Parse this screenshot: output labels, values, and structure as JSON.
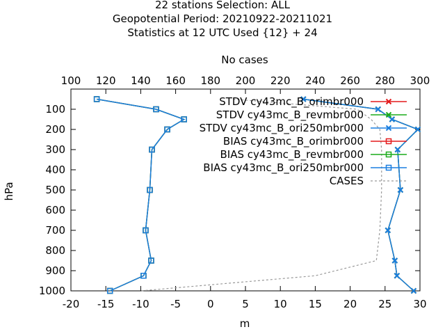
{
  "chart_data": {
    "type": "line",
    "title_lines": [
      "22 stations Selection: ALL",
      "Geopotential  Period: 20210922-20211021",
      "Statistics at 12 UTC  Used {12} + 24"
    ],
    "xlabel": "m",
    "ylabel": "hPa",
    "x2label": "No cases",
    "xlim": [
      -20,
      30
    ],
    "x2lim": [
      100,
      300
    ],
    "ylim": [
      1000,
      0
    ],
    "x_ticks": [
      "-20",
      "-15",
      "-10",
      "-5",
      "0",
      "5",
      "10",
      "15",
      "20",
      "25",
      "30"
    ],
    "x2_ticks": [
      "100",
      "120",
      "140",
      "160",
      "180",
      "200",
      "220",
      "240",
      "260",
      "280",
      "300"
    ],
    "y_ticks": [
      "100",
      "200",
      "300",
      "400",
      "500",
      "600",
      "700",
      "800",
      "900",
      "1000"
    ],
    "legend_position": "top-right",
    "grid": false,
    "levels": [
      50,
      100,
      150,
      200,
      300,
      500,
      700,
      850,
      925,
      1000
    ],
    "series": [
      {
        "name": "STDV cy43mc_B_orimbr000",
        "kind": "stdv",
        "color": "#e41a1c",
        "marker": "x",
        "values": [
          13.3,
          24.0,
          26.0,
          29.7,
          26.8,
          27.2,
          25.4,
          26.4,
          26.7,
          29.1
        ]
      },
      {
        "name": "STDV cy43mc_B_revmbr000",
        "kind": "stdv",
        "color": "#1aab1a",
        "marker": "x",
        "values": [
          13.3,
          24.0,
          26.0,
          29.7,
          26.8,
          27.2,
          25.4,
          26.4,
          26.7,
          29.1
        ]
      },
      {
        "name": "STDV cy43mc_B_ori250mbr000",
        "kind": "stdv",
        "color": "#1a7ee0",
        "marker": "x",
        "values": [
          13.3,
          24.0,
          26.0,
          29.7,
          26.8,
          27.2,
          25.4,
          26.4,
          26.7,
          29.1
        ]
      },
      {
        "name": "BIAS cy43mc_B_orimbr000",
        "kind": "bias",
        "color": "#e41a1c",
        "marker": "square",
        "values": [
          -16.3,
          -7.8,
          -3.8,
          -6.2,
          -8.4,
          -8.7,
          -9.3,
          -8.5,
          -9.6,
          -14.4
        ]
      },
      {
        "name": "BIAS cy43mc_B_revmbr000",
        "kind": "bias",
        "color": "#1aab1a",
        "marker": "square",
        "values": [
          -16.3,
          -7.8,
          -3.8,
          -6.2,
          -8.4,
          -8.7,
          -9.3,
          -8.5,
          -9.6,
          -14.4
        ]
      },
      {
        "name": "BIAS cy43mc_B_ori250mbr000",
        "kind": "bias",
        "color": "#1a7ee0",
        "marker": "square",
        "values": [
          -16.3,
          -7.8,
          -3.8,
          -6.2,
          -8.4,
          -8.7,
          -9.3,
          -8.5,
          -9.6,
          -14.4
        ]
      },
      {
        "name": "CASES",
        "kind": "cases",
        "color": "#999999",
        "marker": "none",
        "axis": "x2",
        "values": [
          193,
          264,
          272,
          277,
          278,
          278,
          277,
          275,
          240,
          140
        ]
      }
    ]
  }
}
